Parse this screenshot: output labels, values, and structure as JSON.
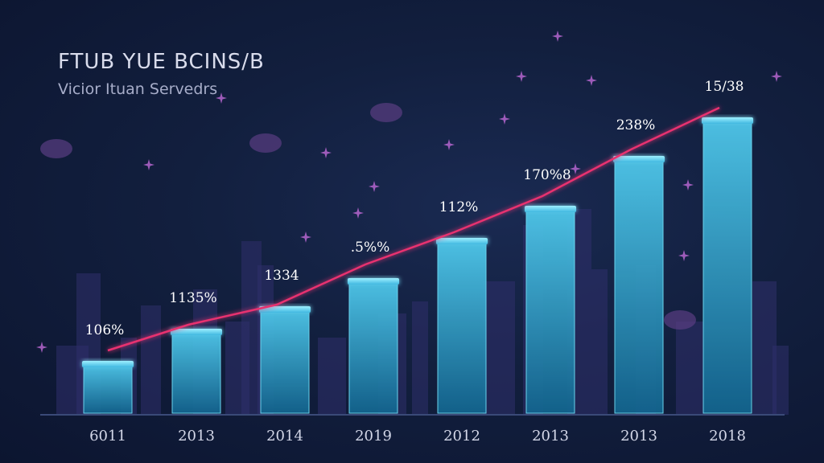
{
  "header": {
    "title": "FTUB YUE BCINS/B",
    "subtitle": "Vicior Ituan Servedrs"
  },
  "colors": {
    "background": "#121f3e",
    "bar_top": "#5ed8f2",
    "bar_bottom": "#156c94",
    "line": "#e8306f",
    "skyline": "#2f2f6b",
    "star": "#c06ad8"
  },
  "chart_data": {
    "type": "bar",
    "categories": [
      "6011",
      "2013",
      "2014",
      "2019",
      "2012",
      "2013",
      "2013",
      "2018"
    ],
    "values": [
      60,
      100,
      128,
      163,
      213,
      253,
      315,
      363
    ],
    "data_labels": [
      "106%",
      "1135%",
      "1334",
      ".5%%",
      "112%",
      "170%8",
      "238%",
      "15/38"
    ],
    "ylim": [
      0,
      380
    ],
    "grid": false,
    "legend": "none",
    "overlay_line": {
      "description_visible": false,
      "values": [
        78,
        110,
        135,
        185,
        225,
        270,
        328,
        380
      ]
    }
  }
}
